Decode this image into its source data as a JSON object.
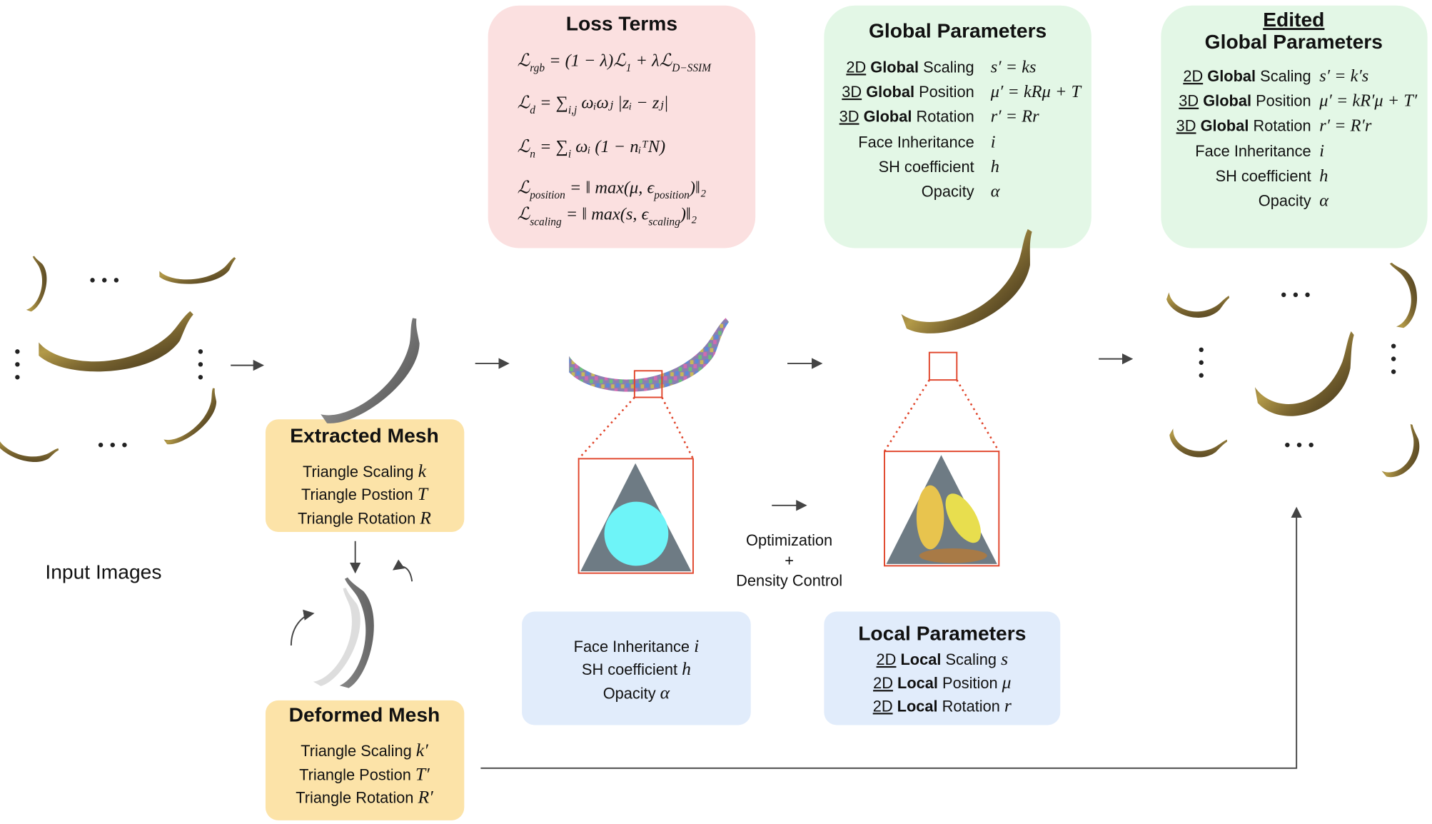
{
  "loss_terms": {
    "title": "Loss Terms",
    "formulas": [
      [
        {
          "text": "ℒ"
        },
        {
          "text": "rgb",
          "sub": true
        },
        {
          "text": " = (1 − λ)ℒ"
        },
        {
          "text": "1",
          "sub": true
        },
        {
          "text": " + λℒ"
        },
        {
          "text": "D−SSIM",
          "sub": true
        }
      ],
      [
        {
          "text": "ℒ"
        },
        {
          "text": "d",
          "sub": true
        },
        {
          "text": " = ∑"
        },
        {
          "text": "i,j",
          "sub": true
        },
        {
          "text": " ωᵢωⱼ |zᵢ − zⱼ|"
        }
      ],
      [
        {
          "text": "ℒ"
        },
        {
          "text": "n",
          "sub": true
        },
        {
          "text": " = ∑"
        },
        {
          "text": "i",
          "sub": true
        },
        {
          "text": " ωᵢ (1 − nᵢᵀN)"
        }
      ],
      [
        {
          "text": "ℒ"
        },
        {
          "text": "position",
          "sub": true
        },
        {
          "text": " = ‖ max(μ, ϵ"
        },
        {
          "text": "position",
          "sub": true
        },
        {
          "text": ")‖₂"
        }
      ],
      [
        {
          "text": "ℒ"
        },
        {
          "text": "scaling",
          "sub": true
        },
        {
          "text": " = ‖ max(s, ϵ"
        },
        {
          "text": "scaling",
          "sub": true
        },
        {
          "text": ")‖₂"
        }
      ]
    ]
  },
  "global_parameters": {
    "title": "Global Parameters",
    "rows": [
      {
        "dim": "2D",
        "kind": "Global",
        "name": "Scaling",
        "expr": "s′ = ks"
      },
      {
        "dim": "3D",
        "kind": "Global",
        "name": "Position",
        "expr": "μ′ = kRμ + T"
      },
      {
        "dim": "3D",
        "kind": "Global",
        "name": "Rotation",
        "expr": "r′ = Rr"
      },
      {
        "name": "Face Inheritance",
        "expr": "i"
      },
      {
        "name": "SH coefficient",
        "expr": "h"
      },
      {
        "name": "Opacity",
        "expr": "α"
      }
    ]
  },
  "edited_global_parameters": {
    "title_line1": "Edited",
    "title_line2": "Global Parameters",
    "rows": [
      {
        "dim": "2D",
        "kind": "Global",
        "name": "Scaling",
        "expr": "s′ = k′s"
      },
      {
        "dim": "3D",
        "kind": "Global",
        "name": "Position",
        "expr": "μ′ = kR′μ + T′"
      },
      {
        "dim": "3D",
        "kind": "Global",
        "name": "Rotation",
        "expr": "r′ = R′r"
      },
      {
        "name": "Face Inheritance",
        "expr": "i"
      },
      {
        "name": "SH coefficient",
        "expr": "h"
      },
      {
        "name": "Opacity",
        "expr": "α"
      }
    ]
  },
  "extracted_mesh": {
    "title": "Extracted Mesh",
    "rows": [
      {
        "name": "Triangle Scaling",
        "symbol": "k"
      },
      {
        "name": "Triangle Postion",
        "symbol": "T"
      },
      {
        "name": "Triangle Rotation",
        "symbol": "R"
      }
    ]
  },
  "deformed_mesh": {
    "title": "Deformed Mesh",
    "rows": [
      {
        "name": "Triangle Scaling",
        "symbol": "k′"
      },
      {
        "name": "Triangle Postion",
        "symbol": "T′"
      },
      {
        "name": "Triangle Rotation",
        "symbol": "R′"
      }
    ]
  },
  "gaussian_attributes": {
    "rows": [
      {
        "name": "Face Inheritance",
        "symbol": "i"
      },
      {
        "name": "SH coefficient",
        "symbol": "h"
      },
      {
        "name": "Opacity",
        "symbol": "α"
      }
    ]
  },
  "local_parameters": {
    "title": "Local Parameters",
    "rows": [
      {
        "dim": "2D",
        "kind": "Local",
        "name": "Scaling",
        "symbol": "s"
      },
      {
        "dim": "2D",
        "kind": "Local",
        "name": "Position",
        "symbol": "μ"
      },
      {
        "dim": "2D",
        "kind": "Local",
        "name": "Rotation",
        "symbol": "r"
      }
    ]
  },
  "input_images_label": "Input Images",
  "optimization_label": [
    "Optimization",
    "+",
    "Density Control"
  ]
}
